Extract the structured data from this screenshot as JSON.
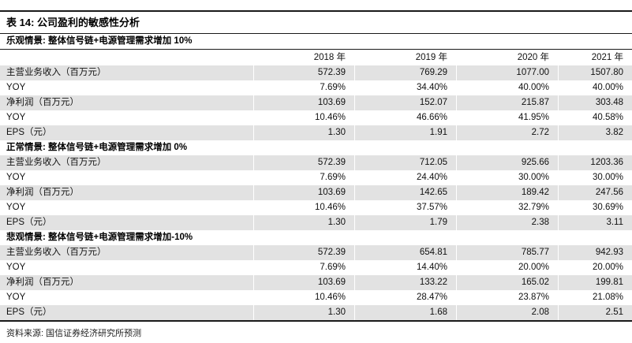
{
  "table": {
    "title": "表 14:  公司盈利的敏感性分析",
    "source": "资料来源: 国信证券经济研究所预测",
    "colors": {
      "row_shade": "#e2e2e2",
      "rule": "#1a1a1a"
    },
    "years": [
      "2018 年",
      "2019 年",
      "2020 年",
      "2021 年"
    ],
    "scenarios": [
      {
        "header": "乐观情景: 整体信号链+电源管理需求增加 10%",
        "rows": [
          {
            "label": "主营业务收入（百万元）",
            "values": [
              "572.39",
              "769.29",
              "1077.00",
              "1507.80"
            ]
          },
          {
            "label": "YOY",
            "values": [
              "7.69%",
              "34.40%",
              "40.00%",
              "40.00%"
            ]
          },
          {
            "label": "净利润（百万元）",
            "values": [
              "103.69",
              "152.07",
              "215.87",
              "303.48"
            ]
          },
          {
            "label": "YOY",
            "values": [
              "10.46%",
              "46.66%",
              "41.95%",
              "40.58%"
            ]
          },
          {
            "label": "EPS（元）",
            "values": [
              "1.30",
              "1.91",
              "2.72",
              "3.82"
            ]
          }
        ]
      },
      {
        "header": "正常情景: 整体信号链+电源管理需求增加 0%",
        "rows": [
          {
            "label": "主营业务收入（百万元）",
            "values": [
              "572.39",
              "712.05",
              "925.66",
              "1203.36"
            ]
          },
          {
            "label": "YOY",
            "values": [
              "7.69%",
              "24.40%",
              "30.00%",
              "30.00%"
            ]
          },
          {
            "label": "净利润（百万元）",
            "values": [
              "103.69",
              "142.65",
              "189.42",
              "247.56"
            ]
          },
          {
            "label": "YOY",
            "values": [
              "10.46%",
              "37.57%",
              "32.79%",
              "30.69%"
            ]
          },
          {
            "label": "EPS（元）",
            "values": [
              "1.30",
              "1.79",
              "2.38",
              "3.11"
            ]
          }
        ]
      },
      {
        "header": "悲观情景: 整体信号链+电源管理需求增加-10%",
        "rows": [
          {
            "label": "主营业务收入（百万元）",
            "values": [
              "572.39",
              "654.81",
              "785.77",
              "942.93"
            ]
          },
          {
            "label": "YOY",
            "values": [
              "7.69%",
              "14.40%",
              "20.00%",
              "20.00%"
            ]
          },
          {
            "label": "净利润（百万元）",
            "values": [
              "103.69",
              "133.22",
              "165.02",
              "199.81"
            ]
          },
          {
            "label": "YOY",
            "values": [
              "10.46%",
              "28.47%",
              "23.87%",
              "21.08%"
            ]
          },
          {
            "label": "EPS（元）",
            "values": [
              "1.30",
              "1.68",
              "2.08",
              "2.51"
            ]
          }
        ]
      }
    ]
  }
}
